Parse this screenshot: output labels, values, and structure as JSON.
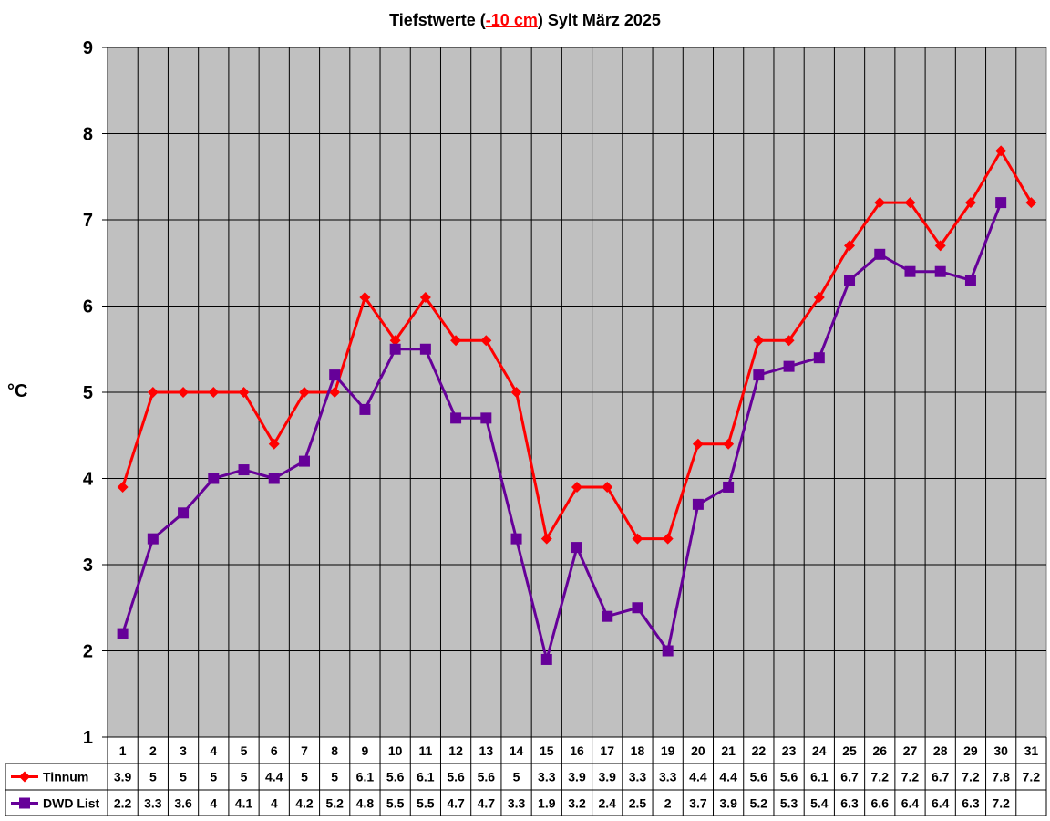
{
  "title": {
    "prefix": "Tiefstwerte (",
    "highlight": "-10 cm",
    "suffix": ") Sylt März 2025"
  },
  "colors": {
    "plot_bg": "#c0c0c0",
    "tinnum": "#ff0000",
    "dwd": "#660099",
    "grid": "#000000"
  },
  "chart_data": {
    "type": "line",
    "ylabel": "°C",
    "ylim": [
      1,
      9
    ],
    "yticks": [
      1,
      2,
      3,
      4,
      5,
      6,
      7,
      8,
      9
    ],
    "grid": true,
    "legend": "table-bottom",
    "categories": [
      "1",
      "2",
      "3",
      "4",
      "5",
      "6",
      "7",
      "8",
      "9",
      "10",
      "11",
      "12",
      "13",
      "14",
      "15",
      "16",
      "17",
      "18",
      "19",
      "20",
      "21",
      "22",
      "23",
      "24",
      "25",
      "26",
      "27",
      "28",
      "29",
      "30",
      "31"
    ],
    "series": [
      {
        "name": "Tinnum",
        "color": "#ff0000",
        "marker": "diamond",
        "values": [
          3.9,
          5,
          5,
          5,
          5,
          4.4,
          5,
          5,
          6.1,
          5.6,
          6.1,
          5.6,
          5.6,
          5,
          3.3,
          3.9,
          3.9,
          3.3,
          3.3,
          4.4,
          4.4,
          5.6,
          5.6,
          6.1,
          6.7,
          7.2,
          7.2,
          6.7,
          7.2,
          7.8,
          7.2
        ]
      },
      {
        "name": "DWD List",
        "color": "#660099",
        "marker": "square",
        "values": [
          2.2,
          3.3,
          3.6,
          4,
          4.1,
          4,
          4.2,
          5.2,
          4.8,
          5.5,
          5.5,
          4.7,
          4.7,
          3.3,
          1.9,
          3.2,
          2.4,
          2.5,
          2,
          3.7,
          3.9,
          5.2,
          5.3,
          5.4,
          6.3,
          6.6,
          6.4,
          6.4,
          6.3,
          7.2,
          null
        ]
      }
    ]
  }
}
